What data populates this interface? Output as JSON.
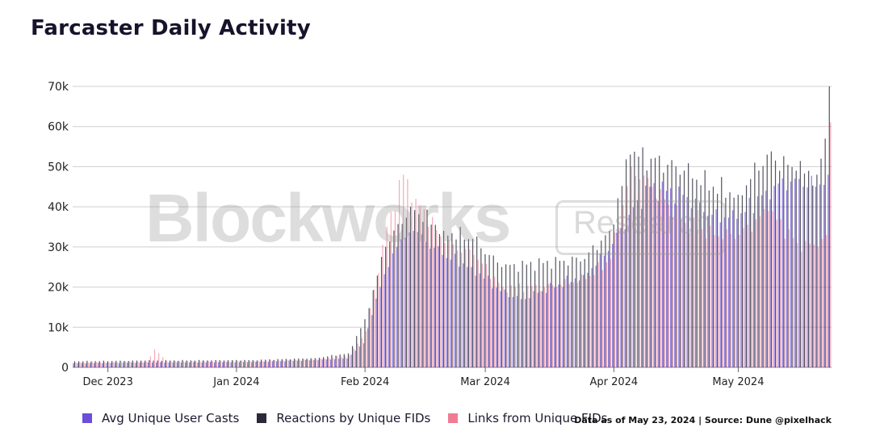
{
  "chart_data": {
    "type": "bar",
    "title": "Farcaster Daily Activity",
    "x_range": [
      "2023-11-23",
      "2024-05-23"
    ],
    "ylim": [
      0,
      70000
    ],
    "yticks": [
      "0",
      "10k",
      "20k",
      "30k",
      "40k",
      "50k",
      "60k",
      "70k"
    ],
    "xticks": [
      {
        "label": "Dec 2023",
        "date": "2023-12-01"
      },
      {
        "label": "Jan 2024",
        "date": "2024-01-01"
      },
      {
        "label": "Feb 2024",
        "date": "2024-02-01"
      },
      {
        "label": "Mar 2024",
        "date": "2024-03-01"
      },
      {
        "label": "Apr 2024",
        "date": "2024-04-01"
      },
      {
        "label": "May 2024",
        "date": "2024-05-01"
      }
    ],
    "grid": "horizontal",
    "legend": "bottom",
    "series": [
      {
        "name": "Avg Unique User Casts",
        "color": "#6b4fd8",
        "anchors": [
          [
            "2023-11-23",
            1000
          ],
          [
            "2023-12-10",
            1200
          ],
          [
            "2024-01-05",
            1300
          ],
          [
            "2024-01-20",
            1800
          ],
          [
            "2024-01-28",
            2200
          ],
          [
            "2024-02-01",
            6000
          ],
          [
            "2024-02-05",
            20000
          ],
          [
            "2024-02-09",
            30000
          ],
          [
            "2024-02-13",
            34000
          ],
          [
            "2024-02-20",
            28000
          ],
          [
            "2024-02-27",
            25000
          ],
          [
            "2024-03-05",
            19000
          ],
          [
            "2024-03-10",
            17000
          ],
          [
            "2024-03-15",
            19000
          ],
          [
            "2024-03-25",
            23000
          ],
          [
            "2024-03-31",
            29000
          ],
          [
            "2024-04-05",
            38000
          ],
          [
            "2024-04-10",
            45000
          ],
          [
            "2024-04-18",
            43000
          ],
          [
            "2024-04-25",
            38000
          ],
          [
            "2024-05-01",
            37000
          ],
          [
            "2024-05-08",
            44000
          ],
          [
            "2024-05-15",
            47000
          ],
          [
            "2024-05-20",
            45000
          ],
          [
            "2024-05-23",
            48000
          ]
        ]
      },
      {
        "name": "Reactions by Unique FIDs",
        "color": "#2a2a3a",
        "anchors": [
          [
            "2023-11-23",
            1500
          ],
          [
            "2023-12-10",
            1700
          ],
          [
            "2024-01-05",
            1800
          ],
          [
            "2024-01-20",
            2300
          ],
          [
            "2024-01-28",
            3500
          ],
          [
            "2024-02-01",
            12000
          ],
          [
            "2024-02-06",
            30000
          ],
          [
            "2024-02-12",
            40000
          ],
          [
            "2024-02-20",
            34000
          ],
          [
            "2024-02-27",
            32000
          ],
          [
            "2024-03-05",
            25000
          ],
          [
            "2024-03-15",
            26000
          ],
          [
            "2024-03-25",
            27000
          ],
          [
            "2024-03-31",
            34000
          ],
          [
            "2024-04-05",
            53000
          ],
          [
            "2024-04-10",
            52000
          ],
          [
            "2024-04-18",
            49000
          ],
          [
            "2024-04-25",
            45000
          ],
          [
            "2024-05-01",
            43000
          ],
          [
            "2024-05-08",
            53000
          ],
          [
            "2024-05-15",
            49000
          ],
          [
            "2024-05-20",
            48000
          ],
          [
            "2024-05-22",
            57000
          ],
          [
            "2024-05-23",
            70000
          ]
        ]
      },
      {
        "name": "Links from Unique FIDs",
        "color": "#f07c93",
        "anchors": [
          [
            "2023-11-23",
            1200
          ],
          [
            "2023-12-10",
            1400
          ],
          [
            "2023-12-12",
            4500
          ],
          [
            "2023-12-15",
            1500
          ],
          [
            "2024-01-05",
            1600
          ],
          [
            "2024-01-20",
            2000
          ],
          [
            "2024-01-28",
            3000
          ],
          [
            "2024-02-01",
            9000
          ],
          [
            "2024-02-06",
            35000
          ],
          [
            "2024-02-10",
            48000
          ],
          [
            "2024-02-13",
            42000
          ],
          [
            "2024-02-20",
            31000
          ],
          [
            "2024-02-27",
            28000
          ],
          [
            "2024-03-05",
            20000
          ],
          [
            "2024-03-15",
            20000
          ],
          [
            "2024-03-25",
            22000
          ],
          [
            "2024-03-31",
            27000
          ],
          [
            "2024-04-05",
            50000
          ],
          [
            "2024-04-10",
            45000
          ],
          [
            "2024-04-18",
            36000
          ],
          [
            "2024-04-25",
            33000
          ],
          [
            "2024-05-01",
            33000
          ],
          [
            "2024-05-08",
            39000
          ],
          [
            "2024-05-15",
            31000
          ],
          [
            "2024-05-20",
            30000
          ],
          [
            "2024-05-22",
            33000
          ],
          [
            "2024-05-23",
            61000
          ]
        ]
      }
    ]
  },
  "legend": {
    "items": [
      {
        "label": "Avg Unique User Casts",
        "color": "#6b4fd8"
      },
      {
        "label": "Reactions by Unique FIDs",
        "color": "#2a2a3a"
      },
      {
        "label": "Links from Unique FIDs",
        "color": "#f07c93"
      }
    ]
  },
  "source_note": "Data as of May 23, 2024 | Source: Dune @pixelhack",
  "watermark": {
    "main": "Blockworks",
    "sub": "Research"
  }
}
